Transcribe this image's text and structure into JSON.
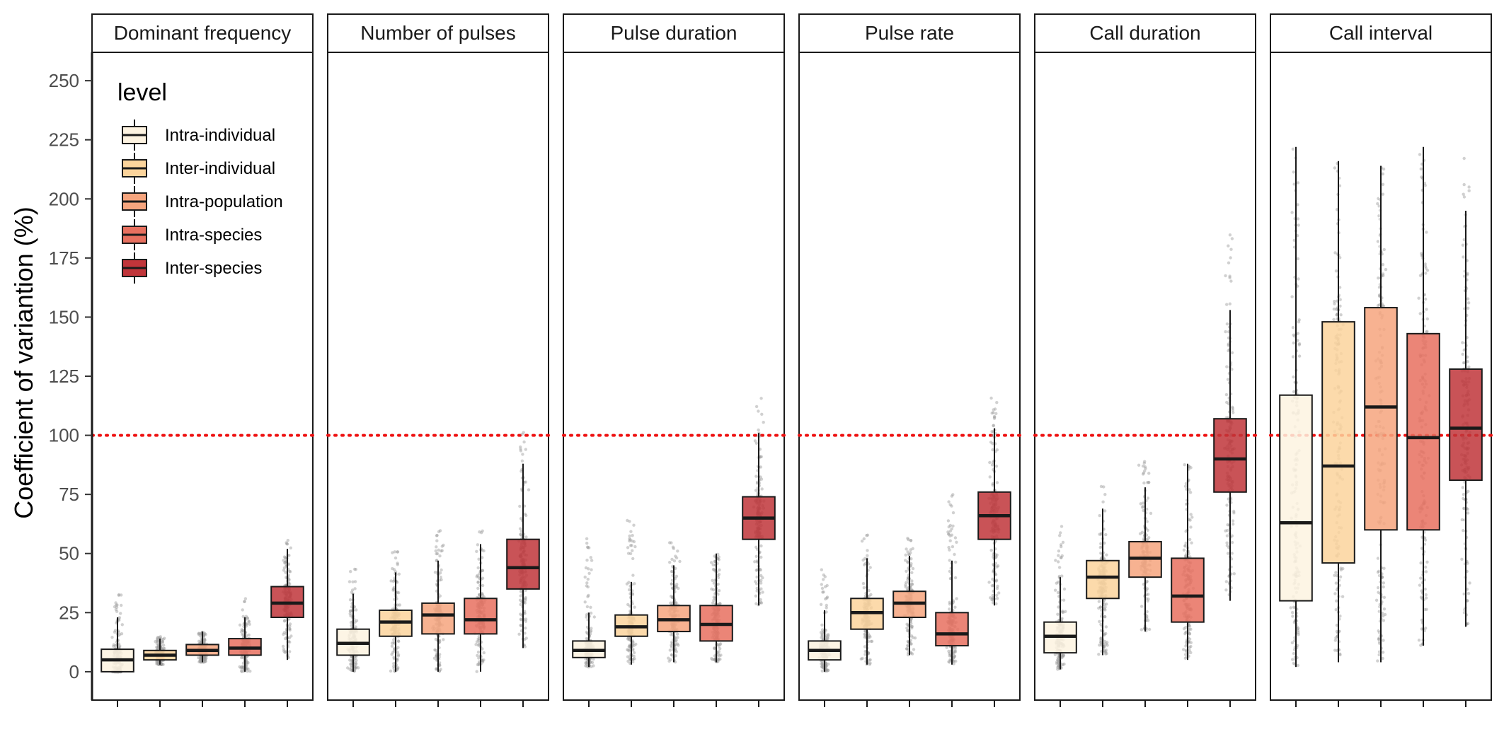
{
  "chart_data": {
    "type": "box",
    "ylabel": "Coefficient of variantion (%)",
    "xlabel": "",
    "ylim": [
      -12,
      262
    ],
    "yticks": [
      0,
      25,
      50,
      75,
      100,
      125,
      150,
      175,
      200,
      225,
      250
    ],
    "reference_line": {
      "y": 100,
      "style": "dotted",
      "color": "#ee1111"
    },
    "legend": {
      "title": "level",
      "placement": "top-left",
      "entries": [
        "Intra-individual",
        "Inter-individual",
        "Intra-population",
        "Intra-species",
        "Inter-species"
      ]
    },
    "levels": [
      "Intra-individual",
      "Inter-individual",
      "Intra-population",
      "Intra-species",
      "Inter-species"
    ],
    "colors": {
      "Intra-individual": "#fdf3e1",
      "Inter-individual": "#fbd49c",
      "Intra-population": "#f6a57e",
      "Intra-species": "#e7705f",
      "Inter-species": "#c0353a"
    },
    "panels": [
      {
        "title": "Dominant frequency",
        "boxes": [
          {
            "level": "Intra-individual",
            "low": 0,
            "q1": 0,
            "median": 5,
            "q3": 9.5,
            "high": 23,
            "jitter_max": 34
          },
          {
            "level": "Inter-individual",
            "low": 3,
            "q1": 5,
            "median": 7,
            "q3": 9,
            "high": 14,
            "jitter_max": 15
          },
          {
            "level": "Intra-population",
            "low": 4,
            "q1": 7,
            "median": 9,
            "q3": 11.5,
            "high": 17,
            "jitter_max": 17
          },
          {
            "level": "Intra-species",
            "low": 0,
            "q1": 7,
            "median": 10,
            "q3": 14,
            "high": 23,
            "jitter_max": 31
          },
          {
            "level": "Inter-species",
            "low": 5,
            "q1": 23,
            "median": 29,
            "q3": 36,
            "high": 52,
            "jitter_max": 56
          }
        ]
      },
      {
        "title": "Number of pulses",
        "boxes": [
          {
            "level": "Intra-individual",
            "low": 0,
            "q1": 7,
            "median": 12,
            "q3": 18,
            "high": 33,
            "jitter_max": 46
          },
          {
            "level": "Inter-individual",
            "low": 0,
            "q1": 15,
            "median": 21,
            "q3": 26,
            "high": 42,
            "jitter_max": 52
          },
          {
            "level": "Intra-population",
            "low": 0,
            "q1": 16,
            "median": 24,
            "q3": 29,
            "high": 47,
            "jitter_max": 60
          },
          {
            "level": "Intra-species",
            "low": 0,
            "q1": 16,
            "median": 22,
            "q3": 31,
            "high": 54,
            "jitter_max": 60
          },
          {
            "level": "Inter-species",
            "low": 10,
            "q1": 35,
            "median": 44,
            "q3": 56,
            "high": 88,
            "jitter_max": 104
          }
        ]
      },
      {
        "title": "Pulse duration",
        "boxes": [
          {
            "level": "Intra-individual",
            "low": 2,
            "q1": 6,
            "median": 9,
            "q3": 13,
            "high": 25,
            "jitter_max": 57
          },
          {
            "level": "Inter-individual",
            "low": 3,
            "q1": 15,
            "median": 19,
            "q3": 24,
            "high": 38,
            "jitter_max": 65
          },
          {
            "level": "Intra-population",
            "low": 4,
            "q1": 17,
            "median": 22,
            "q3": 28,
            "high": 45,
            "jitter_max": 55
          },
          {
            "level": "Intra-species",
            "low": 4,
            "q1": 13,
            "median": 20,
            "q3": 28,
            "high": 50,
            "jitter_max": 50
          },
          {
            "level": "Inter-species",
            "low": 28,
            "q1": 56,
            "median": 65,
            "q3": 74,
            "high": 101,
            "jitter_max": 116
          }
        ]
      },
      {
        "title": "Pulse rate",
        "boxes": [
          {
            "level": "Intra-individual",
            "low": 0,
            "q1": 5,
            "median": 9,
            "q3": 13,
            "high": 26,
            "jitter_max": 45
          },
          {
            "level": "Inter-individual",
            "low": 3,
            "q1": 18,
            "median": 25,
            "q3": 31,
            "high": 48,
            "jitter_max": 58
          },
          {
            "level": "Intra-population",
            "low": 7,
            "q1": 23,
            "median": 29,
            "q3": 34,
            "high": 49,
            "jitter_max": 57
          },
          {
            "level": "Intra-species",
            "low": 3,
            "q1": 11,
            "median": 16,
            "q3": 25,
            "high": 47,
            "jitter_max": 75
          },
          {
            "level": "Inter-species",
            "low": 28,
            "q1": 56,
            "median": 66,
            "q3": 76,
            "high": 103,
            "jitter_max": 118
          }
        ]
      },
      {
        "title": "Call duration",
        "boxes": [
          {
            "level": "Intra-individual",
            "low": 1,
            "q1": 8,
            "median": 15,
            "q3": 21,
            "high": 40,
            "jitter_max": 62
          },
          {
            "level": "Inter-individual",
            "low": 7,
            "q1": 31,
            "median": 40,
            "q3": 47,
            "high": 69,
            "jitter_max": 82
          },
          {
            "level": "Intra-population",
            "low": 17,
            "q1": 40,
            "median": 48,
            "q3": 55,
            "high": 78,
            "jitter_max": 91
          },
          {
            "level": "Intra-species",
            "low": 5,
            "q1": 21,
            "median": 32,
            "q3": 48,
            "high": 88,
            "jitter_max": 88
          },
          {
            "level": "Inter-species",
            "low": 30,
            "q1": 76,
            "median": 90,
            "q3": 107,
            "high": 153,
            "jitter_max": 188
          }
        ]
      },
      {
        "title": "Call interval",
        "boxes": [
          {
            "level": "Intra-individual",
            "low": 2,
            "q1": 30,
            "median": 63,
            "q3": 117,
            "high": 222,
            "jitter_max": 222
          },
          {
            "level": "Inter-individual",
            "low": 4,
            "q1": 46,
            "median": 87,
            "q3": 148,
            "high": 216,
            "jitter_max": 216
          },
          {
            "level": "Intra-population",
            "low": 4,
            "q1": 60,
            "median": 112,
            "q3": 154,
            "high": 214,
            "jitter_max": 214
          },
          {
            "level": "Intra-species",
            "low": 11,
            "q1": 60,
            "median": 99,
            "q3": 143,
            "high": 222,
            "jitter_max": 222
          },
          {
            "level": "Inter-species",
            "low": 19,
            "q1": 81,
            "median": 103,
            "q3": 128,
            "high": 195,
            "jitter_max": 218
          }
        ]
      }
    ]
  }
}
